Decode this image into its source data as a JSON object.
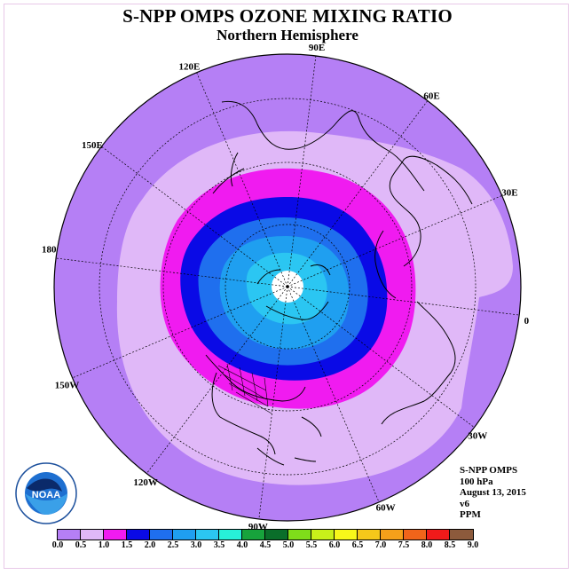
{
  "title": "S-NPP OMPS OZONE MIXING RATIO",
  "subtitle": "Northern Hemisphere",
  "longitude_labels": [
    "90E",
    "60E",
    "30E",
    "0",
    "30W",
    "60W",
    "90W",
    "120W",
    "150W",
    "180",
    "150E",
    "120E"
  ],
  "info": {
    "instrument": "S-NPP OMPS",
    "level": "100 hPa",
    "date": "August 13, 2015",
    "version": "v6",
    "units": "PPM"
  },
  "logo": {
    "text": "NOAA",
    "ring_text": "NATIONAL OCEANIC AND ATMOSPHERIC ADMINISTRATION · U.S. DEPARTMENT OF COMMERCE"
  },
  "colorbar": {
    "ticks": [
      "0.0",
      "0.5",
      "1.0",
      "1.5",
      "2.0",
      "2.5",
      "3.0",
      "3.5",
      "4.0",
      "4.5",
      "5.0",
      "5.5",
      "6.0",
      "6.5",
      "7.0",
      "7.5",
      "8.0",
      "8.5",
      "9.0"
    ],
    "colors": [
      "#b57ff5",
      "#e0b8f8",
      "#f01bf0",
      "#0a0ae6",
      "#1f6fee",
      "#1f9ff0",
      "#2bc6f2",
      "#27f0d8",
      "#17a33c",
      "#0a6e2a",
      "#7fdc1a",
      "#c8f01a",
      "#f7f71a",
      "#f5c81a",
      "#f5a01a",
      "#f0641a",
      "#f01a1a",
      "#8c5a3c"
    ]
  },
  "map_colors": {
    "outer": "#b57ff5",
    "lavender": "#e0b8f8",
    "magenta": "#f01bf0",
    "blue": "#0a0ae6",
    "mid_blue": "#1f6fee",
    "light_blue": "#1f9ff0",
    "cyan_blue": "#2bc6f2",
    "pole": "#ffffff"
  }
}
